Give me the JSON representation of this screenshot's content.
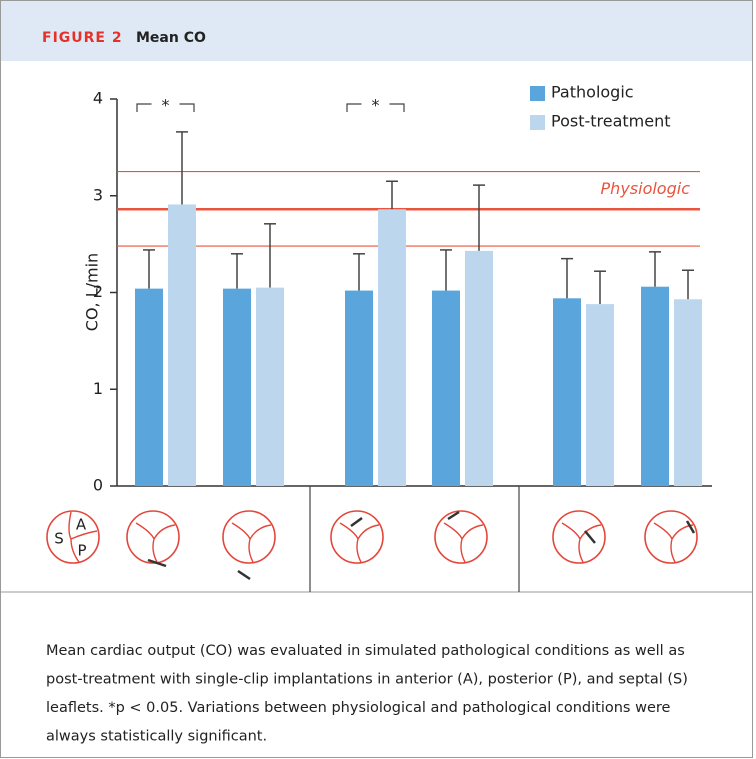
{
  "header": {
    "label": "FIGURE 2",
    "title": "Mean CO"
  },
  "chart_data": {
    "type": "bar",
    "ylabel": "CO, L/min",
    "categories": [
      null,
      null,
      null,
      null,
      null,
      null
    ],
    "series": [
      {
        "name": "Pathologic",
        "color": "#5aa5dc",
        "values": [
          2.04,
          2.04,
          2.02,
          2.02,
          1.94,
          2.06
        ],
        "errors": [
          0.4,
          0.36,
          0.38,
          0.42,
          0.41,
          0.36
        ]
      },
      {
        "name": "Post-treatment",
        "color": "#bcd6ee",
        "values": [
          2.91,
          2.05,
          2.86,
          2.43,
          1.88,
          1.93
        ],
        "errors": [
          0.75,
          0.66,
          0.29,
          0.68,
          0.34,
          0.3
        ]
      }
    ],
    "ylim": [
      0,
      4
    ],
    "yticks": [
      0,
      1,
      2,
      3,
      4
    ],
    "reference": {
      "label": "Physiologic",
      "value": 2.86,
      "range": [
        2.48,
        3.25
      ],
      "color": "#e8553f"
    },
    "significance": [
      {
        "category": 0,
        "text": "*"
      },
      {
        "category": 2,
        "text": "*"
      }
    ],
    "valve_labels": [
      "S",
      "A",
      "P"
    ],
    "legend": "top-right"
  },
  "caption": [
    "Mean cardiac output (CO) was evaluated in simulated pathological conditions as well as",
    "post-treatment with single-clip implantations in anterior (A), posterior (P), and septal (S)",
    "leaflets. *p < 0.05. Variations between physiological and pathological conditions were",
    "always statistically significant."
  ]
}
